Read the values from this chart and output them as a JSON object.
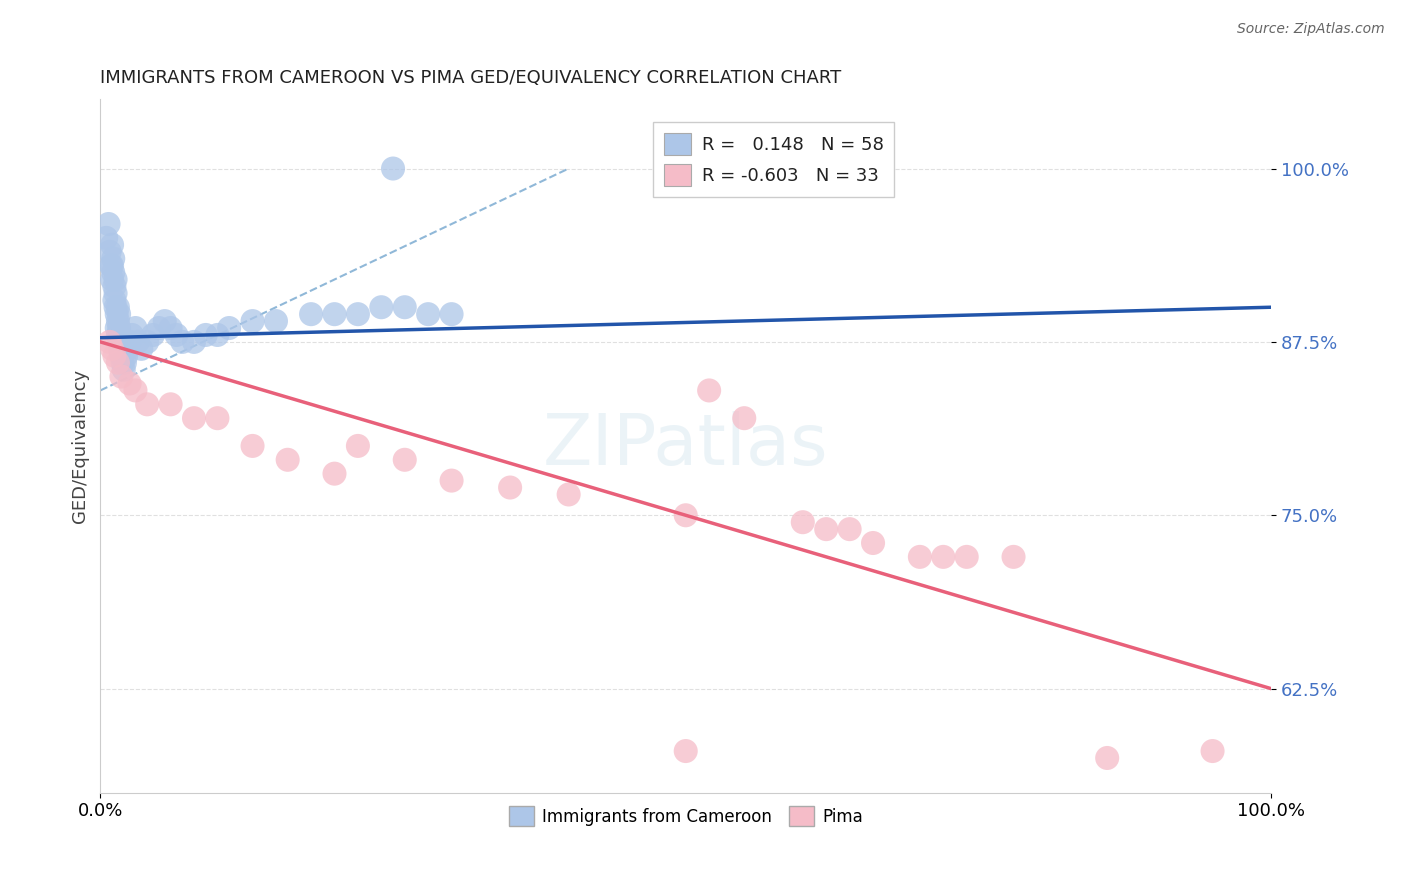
{
  "title": "IMMIGRANTS FROM CAMEROON VS PIMA GED/EQUIVALENCY CORRELATION CHART",
  "source": "Source: ZipAtlas.com",
  "ylabel": "GED/Equivalency",
  "xlim": [
    0.0,
    1.0
  ],
  "ylim": [
    0.55,
    1.05
  ],
  "xtick_vals": [
    0.0,
    1.0
  ],
  "xtick_labels": [
    "0.0%",
    "100.0%"
  ],
  "ytick_vals": [
    0.625,
    0.75,
    0.875,
    1.0
  ],
  "ytick_labels": [
    "62.5%",
    "75.0%",
    "87.5%",
    "100.0%"
  ],
  "legend_label1": "Immigrants from Cameroon",
  "legend_label2": "Pima",
  "R1": "0.148",
  "N1": "58",
  "R2": "-0.603",
  "N2": "33",
  "color_blue": "#adc6e8",
  "color_pink": "#f5bcc8",
  "line_blue": "#2255aa",
  "line_pink": "#e8607a",
  "line_dash": "#90b8d8",
  "blue_points_x": [
    0.005,
    0.007,
    0.008,
    0.009,
    0.01,
    0.01,
    0.01,
    0.011,
    0.011,
    0.012,
    0.012,
    0.013,
    0.013,
    0.013,
    0.014,
    0.014,
    0.015,
    0.015,
    0.015,
    0.016,
    0.016,
    0.016,
    0.017,
    0.017,
    0.018,
    0.018,
    0.019,
    0.019,
    0.02,
    0.021,
    0.022,
    0.023,
    0.025,
    0.027,
    0.03,
    0.032,
    0.035,
    0.04,
    0.045,
    0.05,
    0.055,
    0.06,
    0.065,
    0.07,
    0.08,
    0.09,
    0.1,
    0.11,
    0.13,
    0.15,
    0.18,
    0.2,
    0.22,
    0.24,
    0.26,
    0.28,
    0.3,
    0.25
  ],
  "blue_points_y": [
    0.95,
    0.96,
    0.94,
    0.93,
    0.92,
    0.93,
    0.945,
    0.935,
    0.925,
    0.915,
    0.905,
    0.9,
    0.91,
    0.92,
    0.895,
    0.885,
    0.88,
    0.89,
    0.9,
    0.875,
    0.885,
    0.895,
    0.87,
    0.88,
    0.865,
    0.875,
    0.86,
    0.87,
    0.855,
    0.86,
    0.865,
    0.87,
    0.875,
    0.88,
    0.885,
    0.875,
    0.87,
    0.875,
    0.88,
    0.885,
    0.89,
    0.885,
    0.88,
    0.875,
    0.875,
    0.88,
    0.88,
    0.885,
    0.89,
    0.89,
    0.895,
    0.895,
    0.895,
    0.9,
    0.9,
    0.895,
    0.895,
    1.0
  ],
  "pink_points_x": [
    0.008,
    0.01,
    0.012,
    0.015,
    0.018,
    0.025,
    0.03,
    0.04,
    0.06,
    0.08,
    0.1,
    0.13,
    0.16,
    0.2,
    0.22,
    0.26,
    0.3,
    0.35,
    0.4,
    0.5,
    0.52,
    0.55,
    0.6,
    0.62,
    0.64,
    0.66,
    0.7,
    0.72,
    0.74,
    0.78,
    0.5,
    0.86,
    0.95
  ],
  "pink_points_y": [
    0.875,
    0.87,
    0.865,
    0.86,
    0.85,
    0.845,
    0.84,
    0.83,
    0.83,
    0.82,
    0.82,
    0.8,
    0.79,
    0.78,
    0.8,
    0.79,
    0.775,
    0.77,
    0.765,
    0.75,
    0.84,
    0.82,
    0.745,
    0.74,
    0.74,
    0.73,
    0.72,
    0.72,
    0.72,
    0.72,
    0.58,
    0.575,
    0.58
  ],
  "blue_line_x": [
    0.0,
    1.0
  ],
  "blue_line_y": [
    0.878,
    0.9
  ],
  "pink_line_x": [
    0.0,
    1.0
  ],
  "pink_line_y": [
    0.875,
    0.625
  ],
  "dash_line_x": [
    0.0,
    0.4
  ],
  "dash_line_y": [
    0.84,
    1.0
  ],
  "background_color": "#ffffff",
  "grid_color": "#e0e0e0"
}
